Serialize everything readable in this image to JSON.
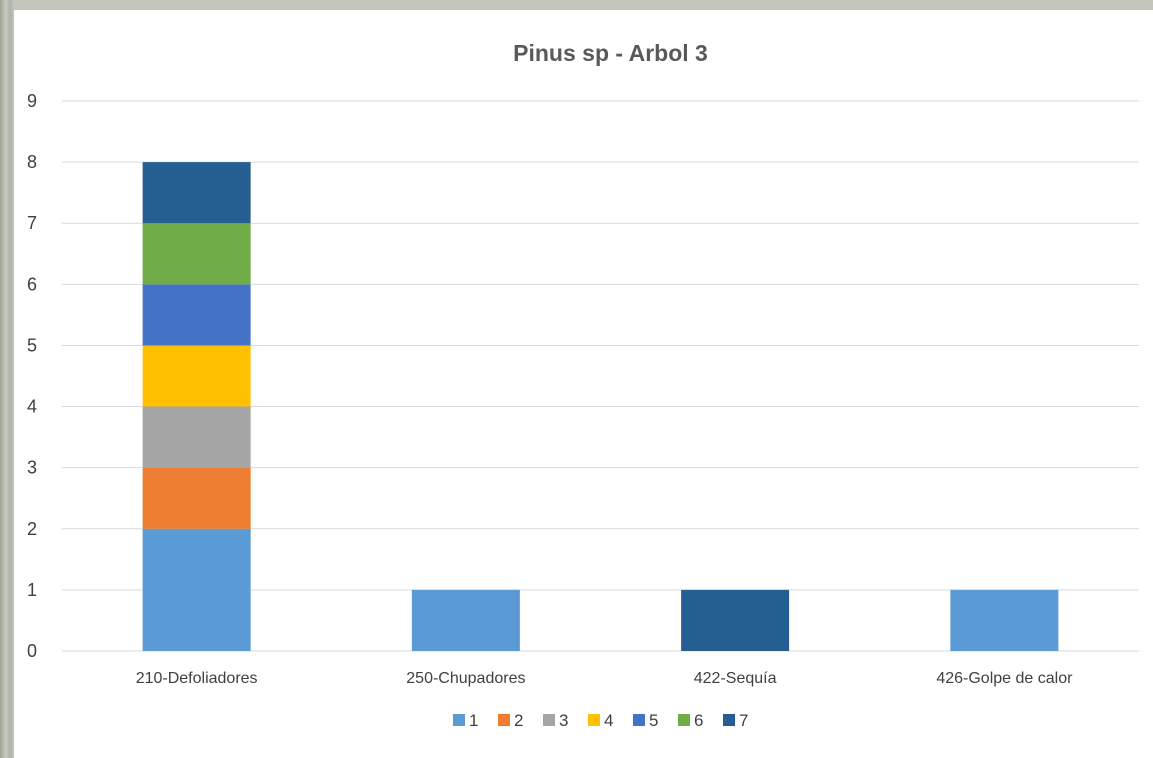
{
  "chart_data": {
    "type": "bar",
    "stacked": true,
    "title": "Pinus sp - Arbol 3",
    "xlabel": "",
    "ylabel": "",
    "ylim": [
      0,
      9
    ],
    "yticks": [
      "0",
      "1",
      "2",
      "3",
      "4",
      "5",
      "6",
      "7",
      "8",
      "9"
    ],
    "grid": true,
    "legend_position": "bottom",
    "categories": [
      "210-Defoliadores",
      "250-Chupadores",
      "422-Sequía",
      "426-Golpe de calor"
    ],
    "series": [
      {
        "name": "1",
        "color": "#5b9bd5",
        "values": [
          2,
          1,
          0,
          1
        ]
      },
      {
        "name": "2",
        "color": "#ed7d31",
        "values": [
          1,
          0,
          0,
          0
        ]
      },
      {
        "name": "3",
        "color": "#a5a5a5",
        "values": [
          1,
          0,
          0,
          0
        ]
      },
      {
        "name": "4",
        "color": "#ffc000",
        "values": [
          1,
          0,
          0,
          0
        ]
      },
      {
        "name": "5",
        "color": "#4472c4",
        "values": [
          1,
          0,
          0,
          0
        ]
      },
      {
        "name": "6",
        "color": "#70ad47",
        "values": [
          1,
          0,
          0,
          0
        ]
      },
      {
        "name": "7",
        "color": "#255e91",
        "values": [
          1,
          0,
          1,
          0
        ]
      }
    ]
  }
}
